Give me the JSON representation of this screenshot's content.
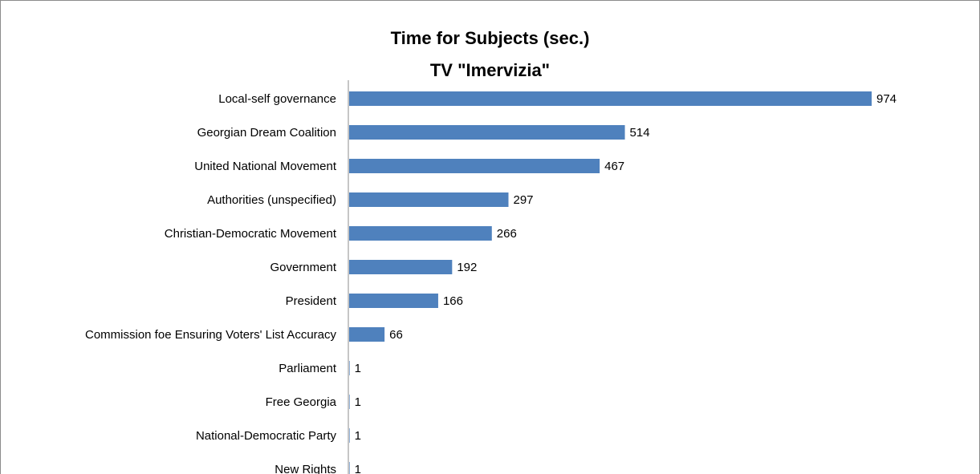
{
  "chart_data": {
    "type": "bar",
    "orientation": "horizontal",
    "title": "Time for Subjects (sec.)",
    "subtitle": "TV \"Imervizia\"",
    "categories": [
      "Local-self governance",
      "Georgian Dream Coalition",
      "United National Movement",
      "Authorities (unspecified)",
      "Christian-Democratic Movement",
      "Government",
      "President",
      "Commission foe Ensuring Voters' List Accuracy",
      "Parliament",
      "Free Georgia",
      "National-Democratic Party",
      "New Rights"
    ],
    "values": [
      974,
      514,
      467,
      297,
      266,
      192,
      166,
      66,
      1,
      1,
      1,
      1
    ],
    "data_labels": [
      "974",
      "514",
      "467",
      "297",
      "266",
      "192",
      "166",
      "66",
      "1",
      "1",
      "1",
      "1"
    ],
    "xlim": [
      0,
      1000
    ],
    "bar_color": "#4f81bd",
    "axis_color": "#8c8c8c",
    "grid": false,
    "legend": "none"
  }
}
